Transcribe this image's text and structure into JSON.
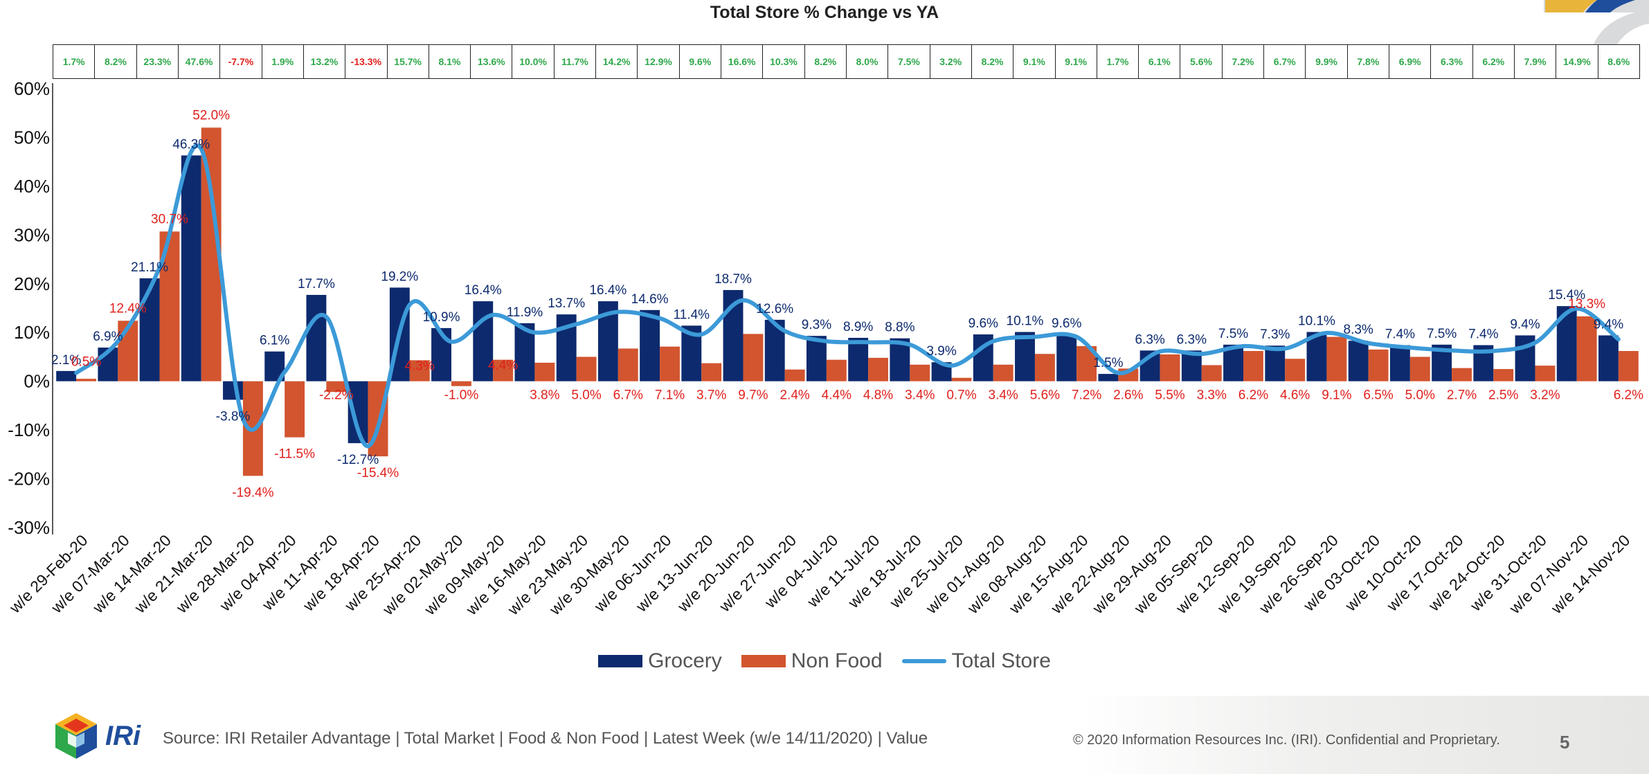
{
  "title": "Total Store % Change vs YA",
  "colors": {
    "grocery": "#0d2a6e",
    "non_food": "#d2552f",
    "total_store": "#3c9ad8",
    "strip_positive": "#2ea84a",
    "strip_negative": "#e0201c"
  },
  "strip_values": [
    "1.7%",
    "8.2%",
    "23.3%",
    "47.6%",
    "-7.7%",
    "1.9%",
    "13.2%",
    "-13.3%",
    "15.7%",
    "8.1%",
    "13.6%",
    "10.0%",
    "11.7%",
    "14.2%",
    "12.9%",
    "9.6%",
    "16.6%",
    "10.3%",
    "8.2%",
    "8.0%",
    "7.5%",
    "3.2%",
    "8.2%",
    "9.1%",
    "9.1%",
    "1.7%",
    "6.1%",
    "5.6%",
    "7.2%",
    "6.7%",
    "9.9%",
    "7.8%",
    "6.9%",
    "6.3%",
    "6.2%",
    "7.9%",
    "14.9%",
    "8.6%"
  ],
  "chart_data": {
    "type": "bar",
    "title": "Total Store % Change vs YA",
    "categories": [
      "w/e 29-Feb-20",
      "w/e 07-Mar-20",
      "w/e 14-Mar-20",
      "w/e 21-Mar-20",
      "w/e 28-Mar-20",
      "w/e 04-Apr-20",
      "w/e 11-Apr-20",
      "w/e 18-Apr-20",
      "w/e 25-Apr-20",
      "w/e 02-May-20",
      "w/e 09-May-20",
      "w/e 16-May-20",
      "w/e 23-May-20",
      "w/e 30-May-20",
      "w/e 06-Jun-20",
      "w/e 13-Jun-20",
      "w/e 20-Jun-20",
      "w/e 27-Jun-20",
      "w/e 04-Jul-20",
      "w/e 11-Jul-20",
      "w/e 18-Jul-20",
      "w/e 25-Jul-20",
      "w/e 01-Aug-20",
      "w/e 08-Aug-20",
      "w/e 15-Aug-20",
      "w/e 22-Aug-20",
      "w/e 29-Aug-20",
      "w/e 05-Sep-20",
      "w/e 12-Sep-20",
      "w/e 19-Sep-20",
      "w/e 26-Sep-20",
      "w/e 03-Oct-20",
      "w/e 10-Oct-20",
      "w/e 17-Oct-20",
      "w/e 24-Oct-20",
      "w/e 31-Oct-20",
      "w/e 07-Nov-20",
      "w/e 14-Nov-20"
    ],
    "series": [
      {
        "name": "Grocery",
        "kind": "bar",
        "values": [
          2.1,
          6.9,
          21.1,
          46.3,
          -3.8,
          6.1,
          17.7,
          -12.7,
          19.2,
          10.9,
          16.4,
          11.9,
          13.7,
          16.4,
          14.6,
          11.4,
          18.7,
          12.6,
          9.3,
          8.9,
          8.8,
          3.9,
          9.6,
          10.1,
          9.6,
          1.5,
          6.3,
          6.3,
          7.5,
          7.3,
          10.1,
          8.3,
          7.4,
          7.5,
          7.4,
          9.4,
          15.4,
          9.4
        ]
      },
      {
        "name": "Non Food",
        "kind": "bar",
        "values": [
          0.5,
          12.4,
          30.7,
          52.0,
          -19.4,
          -11.5,
          -2.2,
          -15.4,
          4.3,
          -1.0,
          4.4,
          3.8,
          5.0,
          6.7,
          7.1,
          3.7,
          9.7,
          2.4,
          4.4,
          4.8,
          3.4,
          0.7,
          3.4,
          5.6,
          7.2,
          2.6,
          5.5,
          3.3,
          6.2,
          4.6,
          9.1,
          6.5,
          5.0,
          2.7,
          2.5,
          3.2,
          13.3,
          6.2
        ]
      },
      {
        "name": "Total Store",
        "kind": "line",
        "values": [
          1.7,
          8.2,
          23.3,
          47.6,
          -7.7,
          1.9,
          13.2,
          -13.3,
          15.7,
          8.1,
          13.6,
          10.0,
          11.7,
          14.2,
          12.9,
          9.6,
          16.6,
          10.3,
          8.2,
          8.0,
          7.5,
          3.2,
          8.2,
          9.1,
          9.1,
          1.7,
          6.1,
          5.6,
          7.2,
          6.7,
          9.9,
          7.8,
          6.9,
          6.3,
          6.2,
          7.9,
          14.9,
          8.6
        ]
      }
    ],
    "grocery_labels": [
      "2.1%",
      "6.9%",
      "21.1%",
      "46.3%",
      "-3.8%",
      "6.1%",
      "17.7%",
      "-12.7%",
      "19.2%",
      "10.9%",
      "16.4%",
      "11.9%",
      "13.7%",
      "16.4%",
      "14.6%",
      "11.4%",
      "18.7%",
      "12.6%",
      "9.3%",
      "8.9%",
      "8.8%",
      "3.9%",
      "9.6%",
      "10.1%",
      "9.6%",
      "1.5%",
      "6.3%",
      "6.3%",
      "7.5%",
      "7.3%",
      "10.1%",
      "8.3%",
      "7.4%",
      "7.5%",
      "7.4%",
      "9.4%",
      "15.4%",
      "9.4%"
    ],
    "non_food_labels": [
      "0.5%",
      "12.4%",
      "30.7%",
      "52.0%",
      "-19.4%",
      "-11.5%",
      "-2.2%",
      "-15.4%",
      "4.3%",
      "-1.0%",
      "4.4%",
      "3.8%",
      "5.0%",
      "6.7%",
      "7.1%",
      "3.7%",
      "9.7%",
      "2.4%",
      "4.4%",
      "4.8%",
      "3.4%",
      "0.7%",
      "3.4%",
      "5.6%",
      "7.2%",
      "2.6%",
      "5.5%",
      "3.3%",
      "6.2%",
      "4.6%",
      "9.1%",
      "6.5%",
      "5.0%",
      "2.7%",
      "2.5%",
      "3.2%",
      "13.3%",
      "6.2%"
    ],
    "ylim": [
      -30,
      60
    ],
    "yticks": [
      60,
      50,
      40,
      30,
      20,
      10,
      0,
      -10,
      -20,
      -30
    ],
    "ytick_labels": [
      "60%",
      "50%",
      "40%",
      "30%",
      "20%",
      "10%",
      "0%",
      "-10%",
      "-20%",
      "-30%"
    ],
    "grid": false,
    "legend_position": "bottom-center"
  },
  "legend": [
    {
      "label": "Grocery",
      "kind": "bar",
      "color": "#0d2a6e"
    },
    {
      "label": "Non Food",
      "kind": "bar",
      "color": "#d2552f"
    },
    {
      "label": "Total Store",
      "kind": "line",
      "color": "#3c9ad8"
    }
  ],
  "footer": {
    "logo_text": "IRi",
    "source": "Source: IRI Retailer Advantage | Total Market | Food & Non Food | Latest Week (w/e 14/11/2020) | Value",
    "copyright": "© 2020 Information Resources Inc. (IRI). Confidential and Proprietary.",
    "page_number": "5"
  }
}
